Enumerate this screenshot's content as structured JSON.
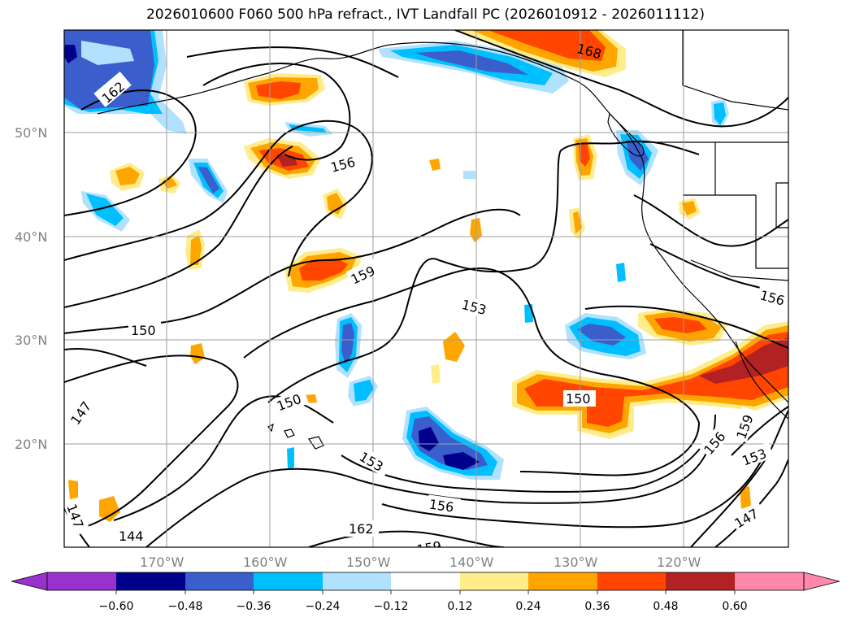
{
  "title": "2026010600 F060 500 hPa refract., IVT Landfall PC (2026010912 - 2026011112)",
  "map": {
    "lat_labels": [
      "50°N",
      "40°N",
      "30°N",
      "20°N"
    ],
    "lon_labels": [
      "170°W",
      "160°W",
      "150°W",
      "140°W",
      "130°W",
      "120°W"
    ],
    "contour_labels": [
      "162",
      "168",
      "156",
      "159",
      "153",
      "150",
      "147",
      "156",
      "150",
      "147",
      "144",
      "153",
      "156",
      "162",
      "159",
      "150",
      "156",
      "159",
      "153",
      "147"
    ]
  },
  "colorbar": {
    "ticks": [
      "−0.60",
      "−0.48",
      "−0.36",
      "−0.24",
      "−0.12",
      "0.12",
      "0.24",
      "0.36",
      "0.48",
      "0.60"
    ],
    "colors": [
      "#9932cc",
      "#00008b",
      "#3a5fcd",
      "#00bfff",
      "#b0e2ff",
      "#ffffff",
      "#ffec8b",
      "#ffa500",
      "#ff4500",
      "#b22222",
      "#ff88aa"
    ]
  },
  "legend_colors": {
    "land_contour": "#000000",
    "grid": "#9e9e9e"
  }
}
